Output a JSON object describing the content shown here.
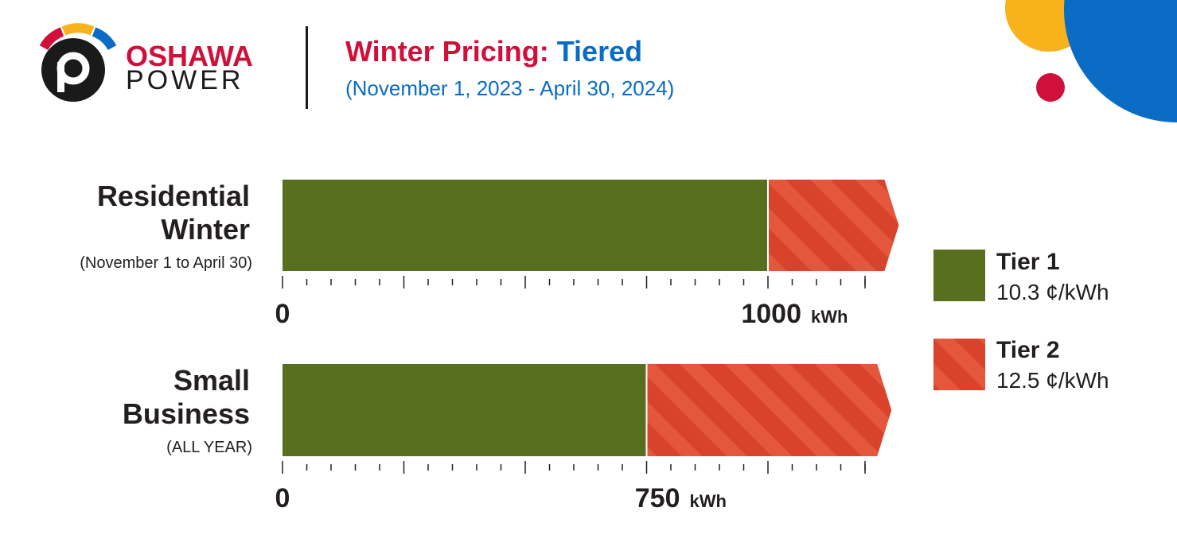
{
  "header": {
    "brand_line1": "OSHAWA",
    "brand_line2": "POWER",
    "title_part1": "Winter Pricing:",
    "title_part2": "Tiered",
    "subtitle": "(November 1, 2023 - April 30, 2024)"
  },
  "colors": {
    "tier1": "#586f1f",
    "tier2": "#d9432b",
    "tier2_stripe": "#e4573c",
    "brand_red": "#d0103a",
    "brand_blue": "#0a6cc4",
    "brand_yellow": "#f8b21c",
    "text_dark": "#231f20"
  },
  "chart_data": [
    {
      "type": "bar",
      "orientation": "horizontal",
      "stacked": true,
      "title_lines": [
        "Residential",
        "Winter"
      ],
      "note": "(November 1 to April 30)",
      "series": [
        {
          "name": "Tier 1",
          "start": 0,
          "end": 1000
        },
        {
          "name": "Tier 2",
          "start": 1000,
          "end": 1240
        }
      ],
      "xlim": [
        0,
        1240
      ],
      "x_tick_labels": [
        {
          "value": 0,
          "label": "0",
          "unit": ""
        },
        {
          "value": 1000,
          "label": "1000",
          "unit": "kWh"
        }
      ],
      "minor_tick_step": 50
    },
    {
      "type": "bar",
      "orientation": "horizontal",
      "stacked": true,
      "title_lines": [
        "Small",
        "Business"
      ],
      "note": "(ALL YEAR)",
      "series": [
        {
          "name": "Tier 1",
          "start": 0,
          "end": 750
        },
        {
          "name": "Tier 2",
          "start": 750,
          "end": 1225
        }
      ],
      "xlim": [
        0,
        1225
      ],
      "x_tick_labels": [
        {
          "value": 0,
          "label": "0",
          "unit": ""
        },
        {
          "value": 750,
          "label": "750",
          "unit": "kWh"
        }
      ],
      "minor_tick_step": 50
    }
  ],
  "legend": [
    {
      "label": "Tier 1",
      "price": "10.3 ¢/kWh"
    },
    {
      "label": "Tier 2",
      "price": "12.5 ¢/kWh"
    }
  ]
}
